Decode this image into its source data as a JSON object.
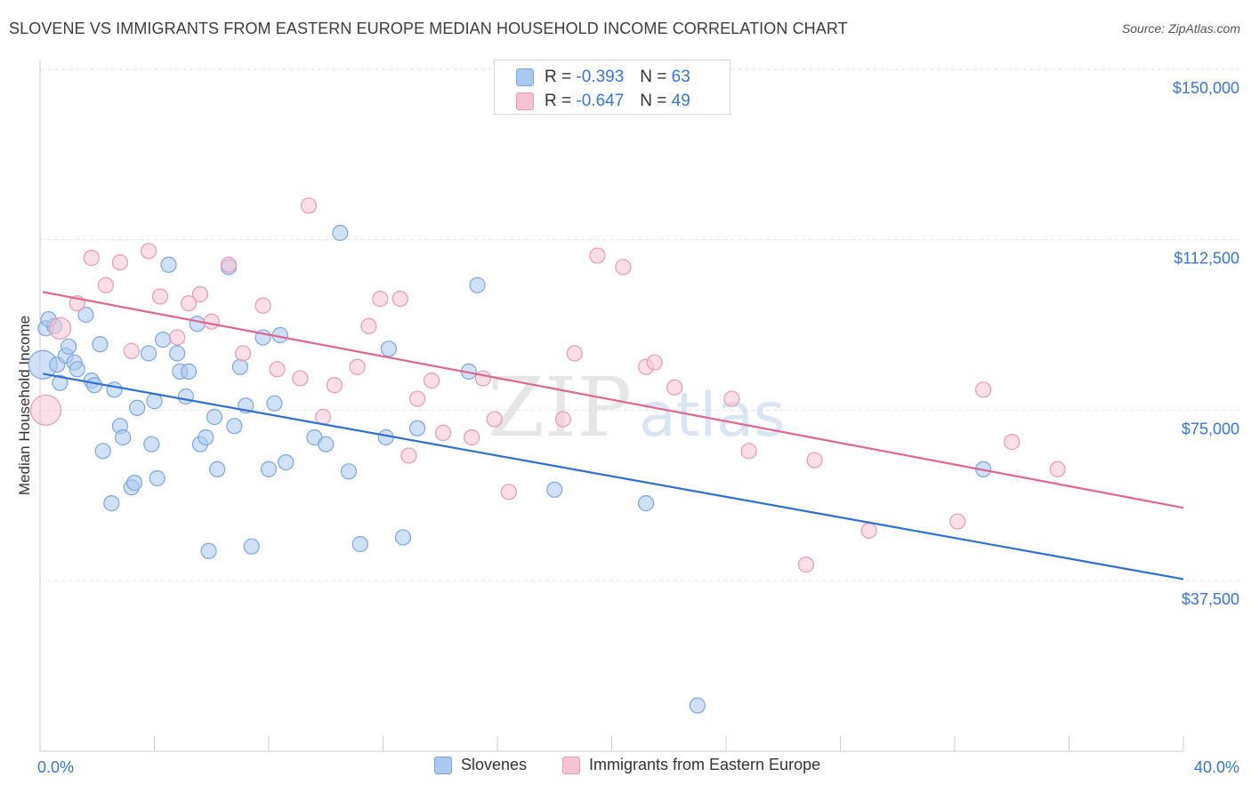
{
  "title": "SLOVENE VS IMMIGRANTS FROM EASTERN EUROPE MEDIAN HOUSEHOLD INCOME CORRELATION CHART",
  "source": "Source: ZipAtlas.com",
  "watermark": {
    "zip": "ZIP",
    "atlas": "atlas"
  },
  "stats": [
    {
      "r_label": "R =",
      "r_value": "-0.393",
      "n_label": "N =",
      "n_value": "63",
      "color": "#a9c9f0",
      "border": "#7aa7e0"
    },
    {
      "r_label": "R =",
      "r_value": "-0.647",
      "n_label": "N =",
      "n_value": "49",
      "color": "#f7c3d3",
      "border": "#e89ab4"
    }
  ],
  "legend": [
    {
      "label": "Slovenes",
      "color": "#a9c9f0",
      "border": "#7aa7e0"
    },
    {
      "label": "Immigrants from Eastern Europe",
      "color": "#f7c3d3",
      "border": "#e89ab4"
    }
  ],
  "chart_data": {
    "type": "scatter",
    "title": "SLOVENE VS IMMIGRANTS FROM EASTERN EUROPE MEDIAN HOUSEHOLD INCOME CORRELATION CHART",
    "xlabel": "",
    "ylabel": "Median Household Income",
    "xlim": [
      0,
      40
    ],
    "ylim": [
      0,
      155000
    ],
    "x_ticks_labels": [
      "0.0%",
      "40.0%"
    ],
    "y_ticks": [
      37500,
      75000,
      112500,
      150000
    ],
    "y_tick_labels": [
      "$37,500",
      "$75,000",
      "$112,500",
      "$150,000"
    ],
    "grid": true,
    "series": [
      {
        "name": "Slovenes",
        "color": "#7aa7e0",
        "fill": "#a9c9f0",
        "line_color": "#2f6fd1",
        "trend": [
          [
            0.1,
            83000
          ],
          [
            40,
            37800
          ]
        ],
        "points": [
          [
            0.1,
            85000
          ],
          [
            0.2,
            93000
          ],
          [
            0.5,
            93500
          ],
          [
            0.6,
            85000
          ],
          [
            0.7,
            81000
          ],
          [
            0.9,
            87000
          ],
          [
            1.0,
            89000
          ],
          [
            1.2,
            85500
          ],
          [
            1.3,
            84000
          ],
          [
            1.6,
            96000
          ],
          [
            1.8,
            81500
          ],
          [
            1.9,
            80500
          ],
          [
            2.1,
            89500
          ],
          [
            2.2,
            66000
          ],
          [
            2.5,
            54500
          ],
          [
            2.6,
            79500
          ],
          [
            2.8,
            71500
          ],
          [
            2.9,
            69000
          ],
          [
            3.2,
            58000
          ],
          [
            3.3,
            59000
          ],
          [
            3.4,
            75500
          ],
          [
            3.8,
            87500
          ],
          [
            3.9,
            67500
          ],
          [
            4.0,
            77000
          ],
          [
            4.1,
            60000
          ],
          [
            4.3,
            90500
          ],
          [
            4.5,
            107000
          ],
          [
            4.8,
            87500
          ],
          [
            4.9,
            83500
          ],
          [
            5.1,
            78000
          ],
          [
            5.2,
            83500
          ],
          [
            5.5,
            94000
          ],
          [
            5.6,
            67500
          ],
          [
            5.8,
            69000
          ],
          [
            5.9,
            44000
          ],
          [
            6.1,
            73500
          ],
          [
            6.2,
            62000
          ],
          [
            6.6,
            106500
          ],
          [
            6.8,
            71500
          ],
          [
            7.0,
            84500
          ],
          [
            7.2,
            76000
          ],
          [
            7.4,
            45000
          ],
          [
            7.8,
            91000
          ],
          [
            8.0,
            62000
          ],
          [
            8.2,
            76500
          ],
          [
            8.4,
            91500
          ],
          [
            8.6,
            63500
          ],
          [
            9.6,
            69000
          ],
          [
            10.0,
            67500
          ],
          [
            10.5,
            114000
          ],
          [
            10.8,
            61500
          ],
          [
            11.2,
            45500
          ],
          [
            12.1,
            69000
          ],
          [
            12.2,
            88500
          ],
          [
            12.7,
            47000
          ],
          [
            13.2,
            71000
          ],
          [
            15.0,
            83500
          ],
          [
            15.3,
            102500
          ],
          [
            18.0,
            57500
          ],
          [
            21.2,
            54500
          ],
          [
            23.0,
            10000
          ],
          [
            33.0,
            62000
          ],
          [
            0.3,
            95000
          ]
        ]
      },
      {
        "name": "Immigrants from Eastern Europe",
        "color": "#e89ab4",
        "fill": "#f7c3d3",
        "line_color": "#e0668f",
        "trend": [
          [
            0.1,
            101000
          ],
          [
            40,
            53500
          ]
        ],
        "points": [
          [
            0.2,
            75000
          ],
          [
            0.7,
            93000
          ],
          [
            1.3,
            98500
          ],
          [
            1.8,
            108500
          ],
          [
            2.3,
            102500
          ],
          [
            2.8,
            107500
          ],
          [
            3.2,
            88000
          ],
          [
            3.8,
            110000
          ],
          [
            4.2,
            100000
          ],
          [
            4.8,
            91000
          ],
          [
            5.2,
            98500
          ],
          [
            5.6,
            100500
          ],
          [
            6.0,
            94500
          ],
          [
            6.6,
            107000
          ],
          [
            7.1,
            87500
          ],
          [
            7.8,
            98000
          ],
          [
            8.3,
            84000
          ],
          [
            9.1,
            82000
          ],
          [
            9.4,
            120000
          ],
          [
            9.9,
            73500
          ],
          [
            10.3,
            80500
          ],
          [
            11.1,
            84500
          ],
          [
            11.5,
            93500
          ],
          [
            11.9,
            99500
          ],
          [
            12.6,
            99500
          ],
          [
            12.9,
            65000
          ],
          [
            13.2,
            77500
          ],
          [
            13.7,
            81500
          ],
          [
            14.1,
            70000
          ],
          [
            15.1,
            69000
          ],
          [
            15.5,
            82000
          ],
          [
            15.9,
            73000
          ],
          [
            16.4,
            57000
          ],
          [
            18.3,
            73000
          ],
          [
            18.7,
            87500
          ],
          [
            19.5,
            109000
          ],
          [
            20.4,
            106500
          ],
          [
            21.2,
            84500
          ],
          [
            21.5,
            85500
          ],
          [
            22.2,
            80000
          ],
          [
            24.2,
            77500
          ],
          [
            24.8,
            66000
          ],
          [
            26.8,
            41000
          ],
          [
            27.1,
            64000
          ],
          [
            29.0,
            48500
          ],
          [
            32.1,
            50500
          ],
          [
            33.0,
            79500
          ],
          [
            34.0,
            68000
          ],
          [
            35.6,
            62000
          ]
        ]
      }
    ]
  }
}
